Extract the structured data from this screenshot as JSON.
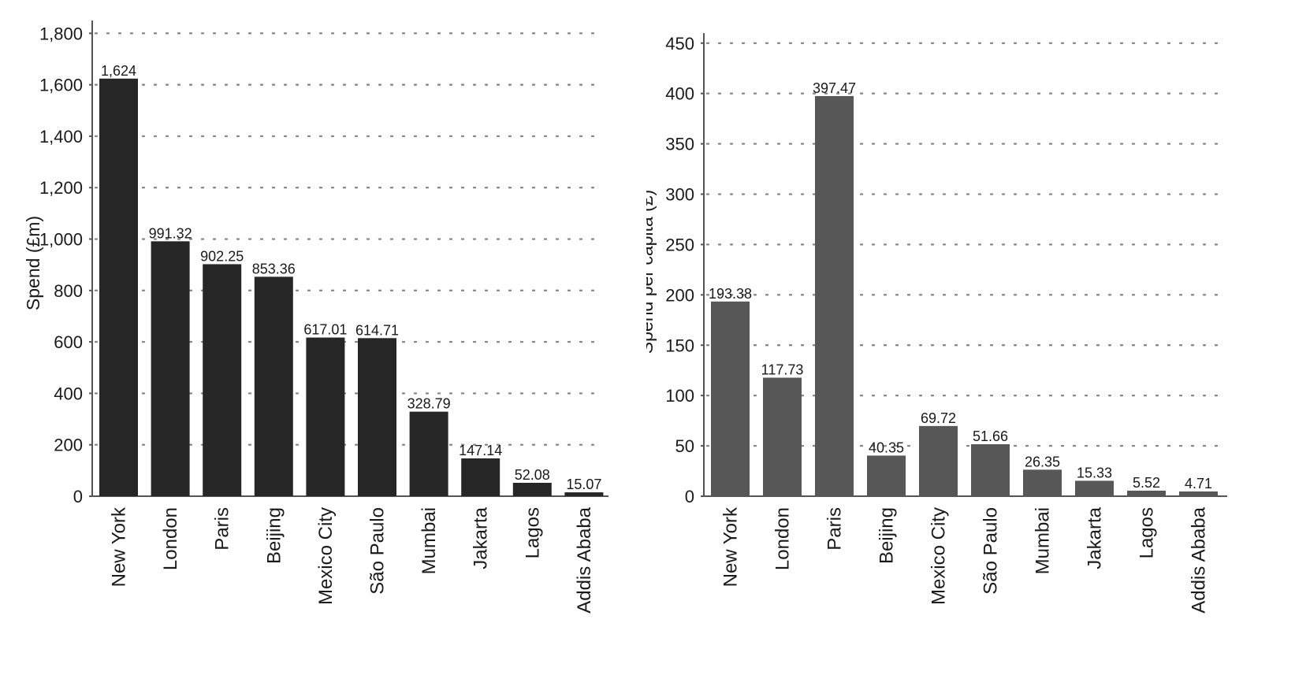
{
  "chart_data": [
    {
      "type": "bar",
      "categories": [
        "New York",
        "London",
        "Paris",
        "Beijing",
        "Mexico City",
        "São Paulo",
        "Mumbai",
        "Jakarta",
        "Lagos",
        "Addis Ababa"
      ],
      "values": [
        1624,
        991.32,
        902.25,
        853.36,
        617.01,
        614.71,
        328.79,
        147.14,
        52.08,
        15.07
      ],
      "data_labels": [
        "1,624",
        "991.32",
        "902.25",
        "853.36",
        "617.01",
        "614.71",
        "328.79",
        "147.14",
        "52.08",
        "15.07"
      ],
      "title": "",
      "xlabel": "",
      "ylabel": "Spend (£m)",
      "ylim": [
        0,
        1850
      ],
      "yticks": [
        0,
        200,
        400,
        600,
        800,
        1000,
        1200,
        1400,
        1600,
        1800
      ],
      "ytick_labels": [
        "0",
        "200",
        "400",
        "600",
        "800",
        "1,000",
        "1,200",
        "1,400",
        "1,600",
        "1,800"
      ],
      "grid": "horizontal dotted",
      "bar_color": "#262626"
    },
    {
      "type": "bar",
      "categories": [
        "New York",
        "London",
        "Paris",
        "Beijing",
        "Mexico City",
        "São Paulo",
        "Mumbai",
        "Jakarta",
        "Lagos",
        "Addis Ababa"
      ],
      "values": [
        193.38,
        117.73,
        397.47,
        40.35,
        69.72,
        51.66,
        26.35,
        15.33,
        5.52,
        4.71
      ],
      "data_labels": [
        "193.38",
        "117.73",
        "397.47",
        "40.35",
        "69.72",
        "51.66",
        "26.35",
        "15.33",
        "5.52",
        "4.71"
      ],
      "title": "",
      "xlabel": "",
      "ylabel": "Spend per capita (£)",
      "ylim": [
        0,
        460
      ],
      "yticks": [
        0,
        50,
        100,
        150,
        200,
        250,
        300,
        350,
        400,
        450
      ],
      "ytick_labels": [
        "0",
        "50",
        "100",
        "150",
        "200",
        "250",
        "300",
        "350",
        "400",
        "450"
      ],
      "grid": "horizontal dotted",
      "bar_color": "#575757"
    }
  ]
}
